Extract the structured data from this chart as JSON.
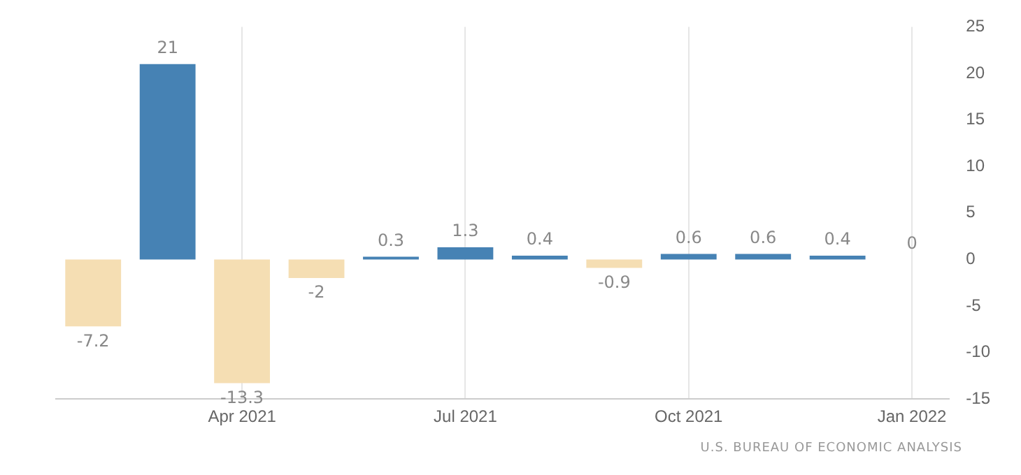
{
  "chart_data": {
    "type": "bar",
    "categories": [
      null,
      null,
      "Apr 2021",
      null,
      null,
      "Jul 2021",
      null,
      null,
      "Oct 2021",
      null,
      null,
      "Jan 2022"
    ],
    "values": [
      -7.2,
      21,
      -13.3,
      -2,
      0.3,
      1.3,
      0.4,
      -0.9,
      0.6,
      0.6,
      0.4,
      0
    ],
    "colors": [
      "#f5deb3",
      "#4682b4",
      "#f5deb3",
      "#f5deb3",
      "#4682b4",
      "#4682b4",
      "#4682b4",
      "#f5deb3",
      "#4682b4",
      "#4682b4",
      "#4682b4",
      "#4682b4"
    ],
    "ylim": [
      -15,
      25
    ],
    "yticks": [
      -15,
      -10,
      -5,
      0,
      5,
      10,
      15,
      20,
      25
    ],
    "grid": "x",
    "data_labels": true,
    "legend": false,
    "annotations": [
      "U.S. BUREAU OF ECONOMIC ANALYSIS"
    ]
  }
}
